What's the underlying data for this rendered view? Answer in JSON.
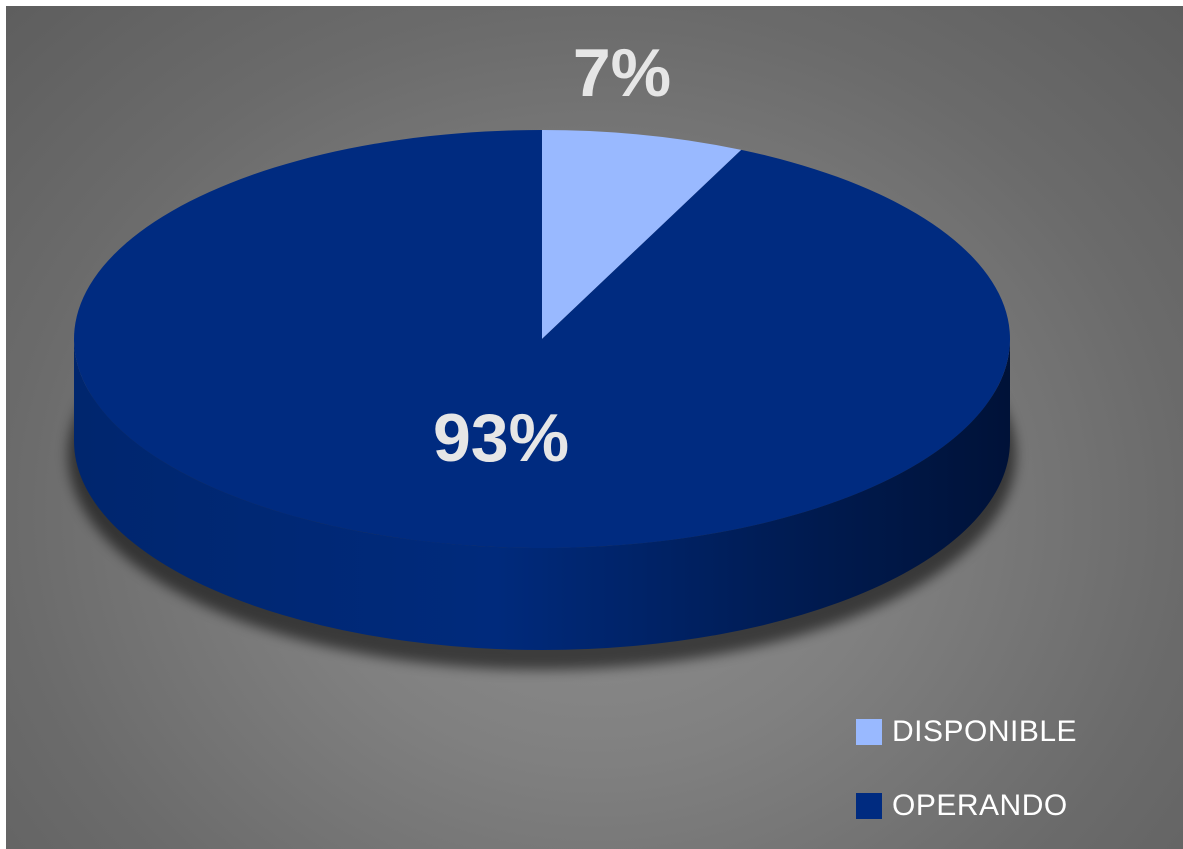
{
  "chart_data": {
    "type": "pie",
    "style": "3d",
    "labels": [
      "DISPONIBLE",
      "OPERANDO"
    ],
    "values": [
      7,
      93
    ],
    "data_labels": [
      "7%",
      "93%"
    ],
    "colors": [
      "#99b9ff",
      "#002b80"
    ],
    "legend_position": "bottom-right",
    "background": "gray-radial"
  }
}
